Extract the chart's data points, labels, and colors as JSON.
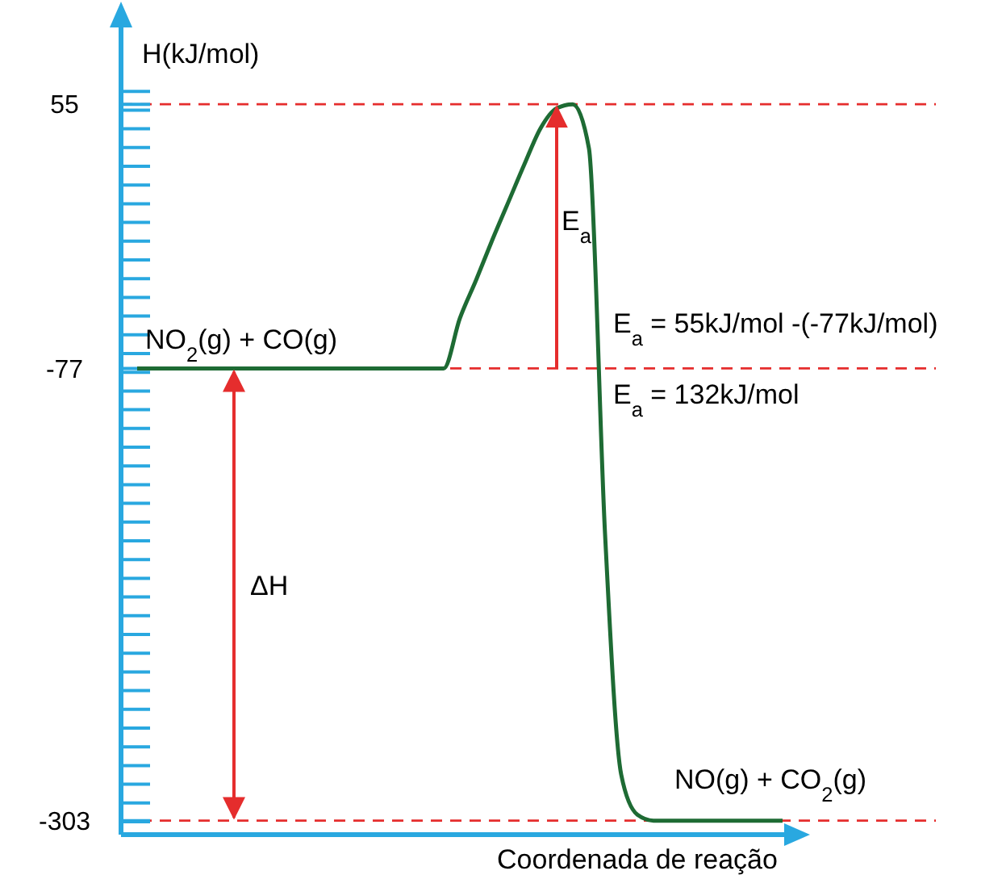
{
  "chart_data": {
    "type": "line",
    "xlabel": "Coordenada de reação",
    "ylabel": "H(kJ/mol)",
    "categories": [
      null,
      null,
      null,
      null,
      null,
      null,
      null,
      null,
      null,
      null,
      null,
      null,
      null,
      null,
      null,
      null,
      null,
      null,
      null,
      null,
      null,
      null,
      null,
      null,
      null,
      null,
      null,
      null,
      null,
      null,
      null,
      null,
      null,
      null,
      null,
      null,
      null,
      null,
      null,
      null,
      null
    ],
    "series": [
      {
        "color": "#1e6b34",
        "values": [
          -77,
          -77,
          -77,
          -77,
          -77,
          -77,
          -77,
          -77,
          -77,
          -77,
          -77,
          -77,
          -77,
          -77,
          -77,
          -77,
          -77,
          -77,
          -77,
          -77,
          -52,
          -33,
          -13,
          6,
          25,
          43,
          53,
          55,
          33,
          -160,
          -280,
          -300,
          -303,
          -303,
          -303,
          -303,
          -303,
          -303,
          -303,
          -303,
          -303
        ]
      }
    ],
    "ylim": [
      -310,
      95
    ],
    "yticks": [
      55,
      -77,
      -303
    ],
    "tick_labels": "y",
    "grid": false,
    "marker": "none",
    "line_style": "solid",
    "ref_lines": [
      {
        "axis": "y",
        "value": 55,
        "color": "#e52d2d",
        "line_style": "dashed"
      },
      {
        "axis": "y",
        "value": -77,
        "color": "#e52d2d",
        "line_style": "dashed"
      },
      {
        "axis": "y",
        "value": -303,
        "color": "#e52d2d",
        "line_style": "dashed"
      }
    ],
    "annotations": [
      "NO$_{2}$(g) + CO(g)",
      "NO(g) + CO$_{2}$(g)",
      "E$_{a}$",
      "ΔH",
      "E$_{a}$ = 55kJ/mol -(-77kJ/mol)",
      "E$_{a}$ = 132kJ/mol"
    ]
  }
}
